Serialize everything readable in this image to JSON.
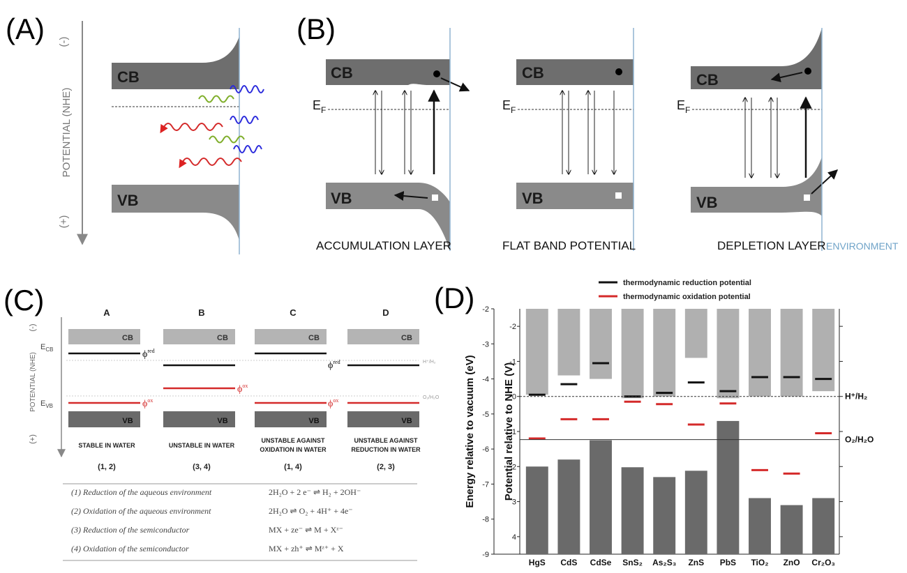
{
  "panels": {
    "a": {
      "letter": "(A)",
      "y_axis": "POTENTIAL (NHE)",
      "minus": "(-)",
      "plus": "(+)",
      "cb": "CB",
      "vb": "VB"
    },
    "b": {
      "letter": "(B)",
      "cb": "CB",
      "vb": "VB",
      "ef": "E",
      "ef_sub": "F",
      "layers": [
        "ACCUMULATION LAYER",
        "FLAT BAND POTENTIAL",
        "DEPLETION LAYER"
      ],
      "environment": "ENVIRONMENT"
    },
    "c": {
      "letter": "(C)",
      "y_axis": "POTENTIAL (NHE)",
      "minus": "(-)",
      "plus": "(+)",
      "ecb": "E",
      "ecb_sub": "CB",
      "evb": "E",
      "evb_sub": "VB",
      "h_label": "H⁺/H₂",
      "o_label": "O₂/H₂O",
      "phi_red": "ϕ",
      "red_sup": "red",
      "phi_ox": "ϕ",
      "ox_sup": "ox",
      "cases": [
        {
          "head": "A",
          "cb": "CB",
          "vb": "VB",
          "caption": [
            "STABLE IN WATER"
          ],
          "reactions": "(1, 2)"
        },
        {
          "head": "B",
          "cb": "CB",
          "vb": "VB",
          "caption": [
            "UNSTABLE IN WATER"
          ],
          "reactions": "(3, 4)"
        },
        {
          "head": "C",
          "cb": "CB",
          "vb": "VB",
          "caption": [
            "UNSTABLE AGAINST",
            "OXIDATION IN WATER"
          ],
          "reactions": "(1, 4)"
        },
        {
          "head": "D",
          "cb": "CB",
          "vb": "VB",
          "caption": [
            "UNSTABLE AGAINST",
            "REDUCTION IN WATER"
          ],
          "reactions": "(2, 3)"
        }
      ],
      "equations": [
        {
          "label": "(1) Reduction of the aqueous environment",
          "eq": "2H₂O + 2 e⁻ ⇌ H₂ + 2OH⁻"
        },
        {
          "label": "(2) Oxidation of the aqueous environment",
          "eq": "2H₂O ⇌ O₂ + 4H⁺ + 4e⁻"
        },
        {
          "label": "(3) Reduction of the semiconductor",
          "eq": "MX + ze⁻ ⇌ M + Xᶻ⁻"
        },
        {
          "label": "(4) Oxidation of the semiconductor",
          "eq": "MX + zh⁺ ⇌ Mᶻ⁺ + X"
        }
      ]
    },
    "d": {
      "letter": "(D)",
      "legend_red": "thermodynamic reduction potential",
      "legend_ox": "thermodynamic oxidation potential",
      "h_label": "H⁺/H₂",
      "o_label": "O₂/H₂O",
      "colors": {
        "cb_bar": "#b0b0b0",
        "vb_bar": "#6a6a6a",
        "red_line": "#111111",
        "ox_line": "#d42a2a"
      }
    }
  },
  "chart_data": {
    "type": "bar",
    "title": "",
    "categories": [
      "HgS",
      "CdS",
      "CdSe",
      "SnS₂",
      "As₂S₃",
      "ZnS",
      "PbS",
      "TiO₂",
      "ZnO",
      "Cr₂O₃"
    ],
    "xlabel": "",
    "ylabel": "Energy relative to vacuum (eV)",
    "y2label": "Potential relative to NHE (V)",
    "ylim": [
      -2,
      -9
    ],
    "yticks": [
      -2,
      -3,
      -4,
      -5,
      -6,
      -7,
      -8,
      -9
    ],
    "y2ticks": [
      -2,
      -1,
      0,
      1,
      2,
      3,
      4
    ],
    "y2_grid_labels": [
      -2,
      -1,
      0,
      1,
      2,
      3,
      4
    ],
    "reference_lines": [
      {
        "name": "H⁺/H₂",
        "value": -4.5
      },
      {
        "name": "O₂/H₂O",
        "value": -5.73
      }
    ],
    "series": [
      {
        "name": "CB",
        "values": [
          -4.45,
          -3.9,
          -4.0,
          -4.55,
          -4.5,
          -3.4,
          -4.55,
          -4.5,
          -4.5,
          -4.35
        ]
      },
      {
        "name": "VB",
        "values": [
          -6.5,
          -6.3,
          -5.75,
          -6.52,
          -6.8,
          -6.62,
          -5.2,
          -7.4,
          -7.6,
          -7.4
        ]
      },
      {
        "name": "thermodynamic reduction potential",
        "values": [
          -4.45,
          -4.15,
          -3.55,
          -4.5,
          -4.4,
          -4.1,
          -4.35,
          -3.95,
          -3.95,
          -4.0
        ]
      },
      {
        "name": "thermodynamic oxidation potential",
        "values": [
          -5.7,
          -5.15,
          -5.15,
          -4.65,
          -4.72,
          -5.3,
          -4.7,
          -6.6,
          -6.7,
          -5.55
        ]
      }
    ],
    "grid": false,
    "legend": "top"
  }
}
